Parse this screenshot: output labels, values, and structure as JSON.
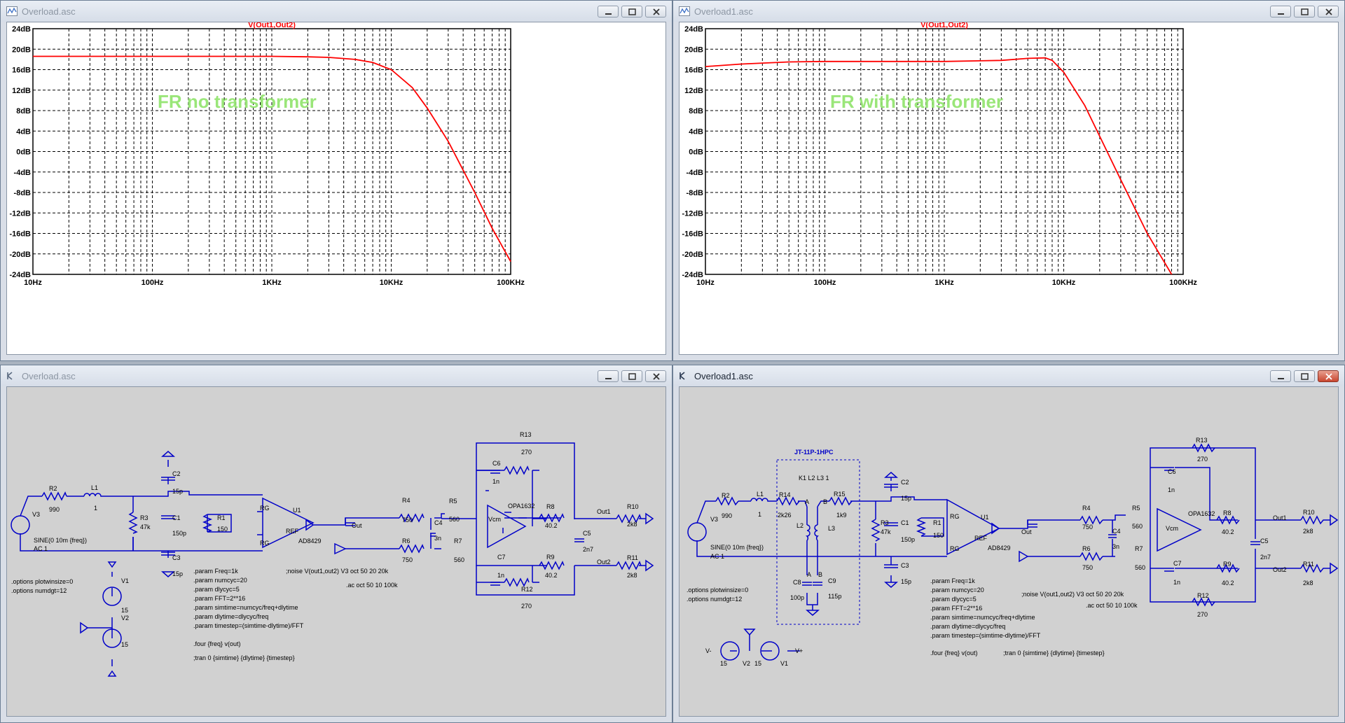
{
  "windows": {
    "plot_left": {
      "title": "Overload.asc",
      "trace_label": "V(Out1,Out2)",
      "annotation": "FR no transformer"
    },
    "plot_right": {
      "title": "Overload1.asc",
      "trace_label": "V(Out1,Out2)",
      "annotation": "FR with transformer"
    },
    "schem_left": {
      "title": "Overload.asc"
    },
    "schem_right": {
      "title": "Overload1.asc"
    }
  },
  "axes": {
    "y_ticks": [
      "24dB",
      "20dB",
      "16dB",
      "12dB",
      "8dB",
      "4dB",
      "0dB",
      "-4dB",
      "-8dB",
      "-12dB",
      "-16dB",
      "-20dB",
      "-24dB"
    ],
    "x_ticks": [
      "10Hz",
      "100Hz",
      "1KHz",
      "10KHz",
      "100KHz"
    ]
  },
  "chart_data": [
    {
      "type": "line",
      "title": "V(Out1,Out2)",
      "x_scale": "log",
      "xlim": [
        10,
        100000
      ],
      "ylim": [
        -24,
        24
      ],
      "series": [
        {
          "name": "V(Out1,Out2)",
          "color": "#ff0000",
          "x": [
            10,
            100,
            1000,
            2000,
            3000,
            5000,
            7000,
            10000,
            15000,
            20000,
            30000,
            50000,
            70000,
            100000
          ],
          "y": [
            18.6,
            18.6,
            18.6,
            18.5,
            18.4,
            18.0,
            17.4,
            16.0,
            12.5,
            8.5,
            2.0,
            -8.0,
            -15.0,
            -21.5
          ]
        }
      ]
    },
    {
      "type": "line",
      "title": "V(Out1,Out2)",
      "x_scale": "log",
      "xlim": [
        10,
        100000
      ],
      "ylim": [
        -24,
        24
      ],
      "series": [
        {
          "name": "V(Out1,Out2)",
          "color": "#ff0000",
          "x": [
            10,
            20,
            50,
            100,
            1000,
            3000,
            5000,
            7000,
            8000,
            10000,
            15000,
            20000,
            30000,
            50000,
            80000
          ],
          "y": [
            16.6,
            17.1,
            17.5,
            17.6,
            17.6,
            17.8,
            18.2,
            18.3,
            17.8,
            15.5,
            9.0,
            3.0,
            -5.5,
            -16.0,
            -24.0
          ]
        }
      ]
    }
  ],
  "schematic_left": {
    "labels": {
      "R2": "R2",
      "R2v": "990",
      "L1": "L1",
      "L1v": "1",
      "V3": "V3",
      "src1": "SINE(0 10m {freq})",
      "src2": "AC 1",
      "R3": "R3",
      "R3v": "47k",
      "C2": "C2",
      "C2v": "15p",
      "C1": "C1",
      "C1v": "150p",
      "C3": "C3",
      "C3v": "15p",
      "R1": "R1",
      "R1v": "150",
      "RG1": "RG",
      "RG2": "RG",
      "REF": "REF",
      "U1": "U1",
      "AD": "AD8429",
      "Out": "Out",
      "R4": "R4",
      "R4v": "750",
      "R6": "R6",
      "R6v": "750",
      "C4": "C4",
      "C4v": "3n",
      "R5": "R5",
      "R5v": "560",
      "R7": "R7",
      "R7v": "560",
      "C6": "C6",
      "C6v": "1n",
      "C7": "C7",
      "C7v": "1n",
      "Vcm": "Vcm",
      "OPA": "OPA1632",
      "R8": "R8",
      "R8v": "40.2",
      "R9": "R9",
      "R9v": "40.2",
      "C5": "C5",
      "C5v": "2n7",
      "R13": "R13",
      "R13v": "270",
      "R12": "R12",
      "R12v": "270",
      "Out1": "Out1",
      "Out2": "Out2",
      "R10": "R10",
      "R10v": "2k8",
      "R11": "R11",
      "R11v": "2k8",
      "V1": "V1",
      "V1v": "15",
      "V2": "V2",
      "V2v": "15"
    },
    "directives": [
      ".options plotwinsize=0",
      ".options numdgt=12"
    ],
    "params": [
      ".param Freq=1k",
      ".param numcyc=20",
      ".param dlycyc=5",
      ".param FFT=2**16",
      ".param simtime=numcyc/freq+dlytime",
      ".param dlytime=dlycyc/freq",
      ".param timestep=(simtime-dlytime)/FFT"
    ],
    "noise": ";noise V(out1,out2) V3 oct 50 20 20k",
    "ac": ".ac oct 50 10 100k",
    "four": ".four {freq} v(out)",
    "tran": ";tran 0 {simtime} {dlytime} {timestep}"
  },
  "schematic_right": {
    "labels": {
      "R2": "R2",
      "R2v": "990",
      "L1": "L1",
      "L1v": "1",
      "V3": "V3",
      "src1": "SINE(0 10m {freq})",
      "src2": "AC 1",
      "R14": "R14",
      "R14v": "2k26",
      "R15": "R15",
      "R15v": "1k9",
      "xfmr": "JT-11P-1HPC",
      "K1": "K1 L2 L3 1",
      "A1": "A",
      "B1": "B",
      "L2": "L2",
      "L3": "L3",
      "C8": "C8",
      "C8v": "100p",
      "C9": "C9",
      "C9v": "115p",
      "A2": "A",
      "B2": "B",
      "R3": "R3",
      "R3v": "47k",
      "C2": "C2",
      "C2v": "15p",
      "C1": "C1",
      "C1v": "150p",
      "C3": "C3",
      "C3v": "15p",
      "R1": "R1",
      "R1v": "150",
      "RG1": "RG",
      "RG2": "RG",
      "REF": "REF",
      "U1": "U1",
      "AD": "AD8429",
      "Out": "Out",
      "R4": "R4",
      "R4v": "750",
      "R6": "R6",
      "R6v": "750",
      "C4": "C4",
      "C4v": "3n",
      "R5": "R5",
      "R5v": "560",
      "R7": "R7",
      "R7v": "560",
      "C6": "C6",
      "C6v": "1n",
      "C7": "C7",
      "C7v": "1n",
      "Vcm": "Vcm",
      "OPA": "OPA1632",
      "R8": "R8",
      "R8v": "40.2",
      "R9": "R9",
      "R9v": "40.2",
      "C5": "C5",
      "C5v": "2n7",
      "R13": "R13",
      "R13v": "270",
      "R12": "R12",
      "R12v": "270",
      "Out1": "Out1",
      "Out2": "Out2",
      "R10": "R10",
      "R10v": "2k8",
      "R11": "R11",
      "R11v": "2k8",
      "Vm": "V-",
      "Vp": "V+",
      "V2": "V2",
      "V1": "V1",
      "n15a": "15",
      "n15b": "15"
    },
    "directives": [
      ".options plotwinsize=0",
      ".options numdgt=12"
    ],
    "params": [
      ".param Freq=1k",
      ".param numcyc=20",
      ".param dlycyc=5",
      ".param FFT=2**16",
      ".param simtime=numcyc/freq+dlytime",
      ".param dlytime=dlycyc/freq",
      ".param timestep=(simtime-dlytime)/FFT"
    ],
    "noise": ";noise V(out1,out2) V3 oct 50 20 20k",
    "ac": ".ac oct 50 10 100k",
    "four": ".four {freq} v(out)",
    "tran": ";tran 0 {simtime} {dlytime} {timestep}"
  }
}
